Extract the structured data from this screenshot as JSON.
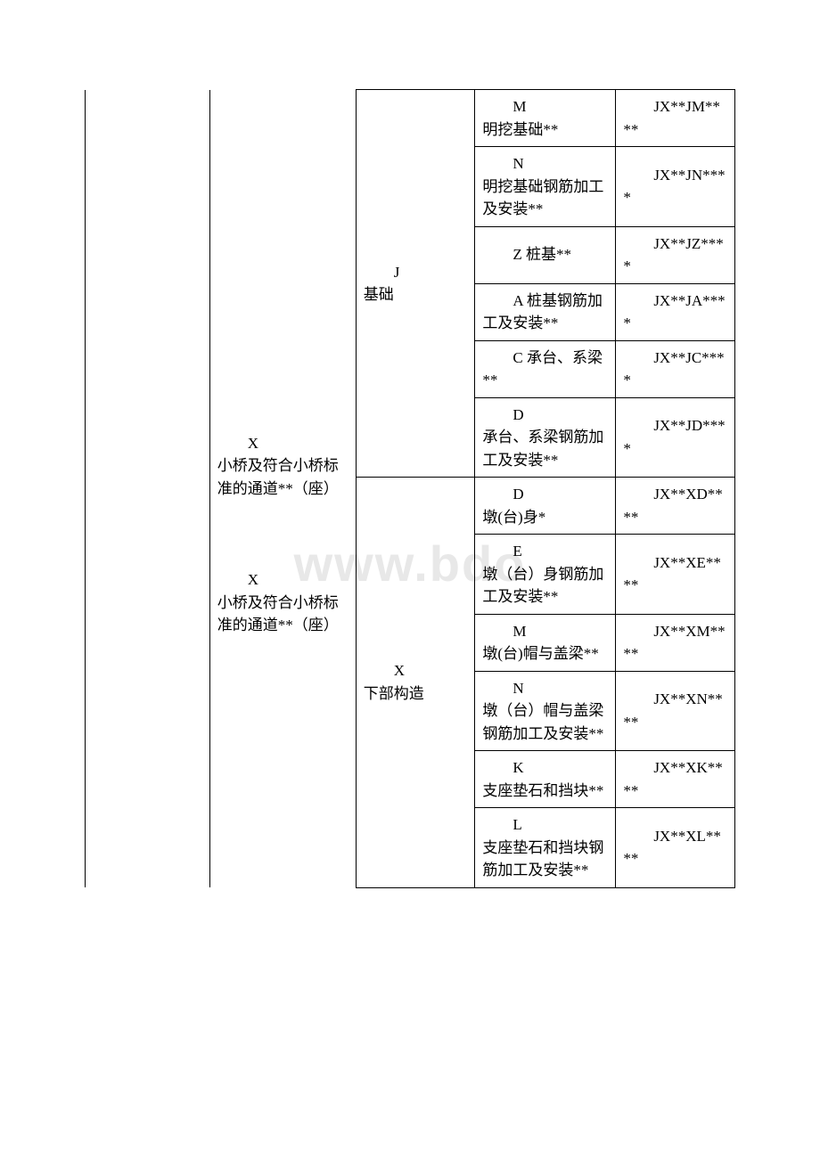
{
  "watermark": "www.bdo",
  "table": {
    "col1_upper": "X<br>小桥及符合小桥标准的通道**（座）",
    "col1_lower": "X<br>小桥及符合小桥标准的通道**（座）",
    "col2_upper": "J<br>基础",
    "col2_lower": "X<br>下部构造",
    "rows": [
      {
        "c3": "M<br>明挖基础**",
        "c4": "JX**JM****"
      },
      {
        "c3": "N<br>明挖基础钢筋加工及安装**",
        "c4": "JX**JN****"
      },
      {
        "c3": "Z 桩基**",
        "c4": "JX**JZ****"
      },
      {
        "c3": "A 桩基钢筋加工及安装**",
        "c4": "JX**JA****"
      },
      {
        "c3": "C 承台、系梁**",
        "c4": "JX**JC****"
      },
      {
        "c3": "D<br>承台、系梁钢筋加工及安装**",
        "c4": "JX**JD****"
      },
      {
        "c3": "D<br>墩(台)身*",
        "c4": "JX**XD****"
      },
      {
        "c3": "E<br>墩（台）身钢筋加工及安装**",
        "c4": "JX**XE****"
      },
      {
        "c3": "M<br>墩(台)帽与盖梁**",
        "c4": "JX**XM****"
      },
      {
        "c3": "N<br>墩（台）帽与盖梁钢筋加工及安装**",
        "c4": "JX**XN****"
      },
      {
        "c3": "K<br>支座垫石和挡块**",
        "c4": "JX**XK****"
      },
      {
        "c3": "L<br>支座垫石和挡块钢筋加工及安装**",
        "c4": "JX**XL****"
      }
    ]
  }
}
